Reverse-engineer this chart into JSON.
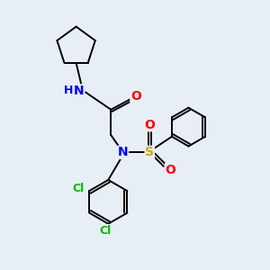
{
  "background_color": "#e8eef5",
  "atom_colors": {
    "N": "#0000ff",
    "O": "#ff0000",
    "S": "#ccaa00",
    "Cl": "#00bb00",
    "H": "#0000ff",
    "C": "#000000"
  },
  "bond_color": "#000000",
  "lw": 1.4
}
